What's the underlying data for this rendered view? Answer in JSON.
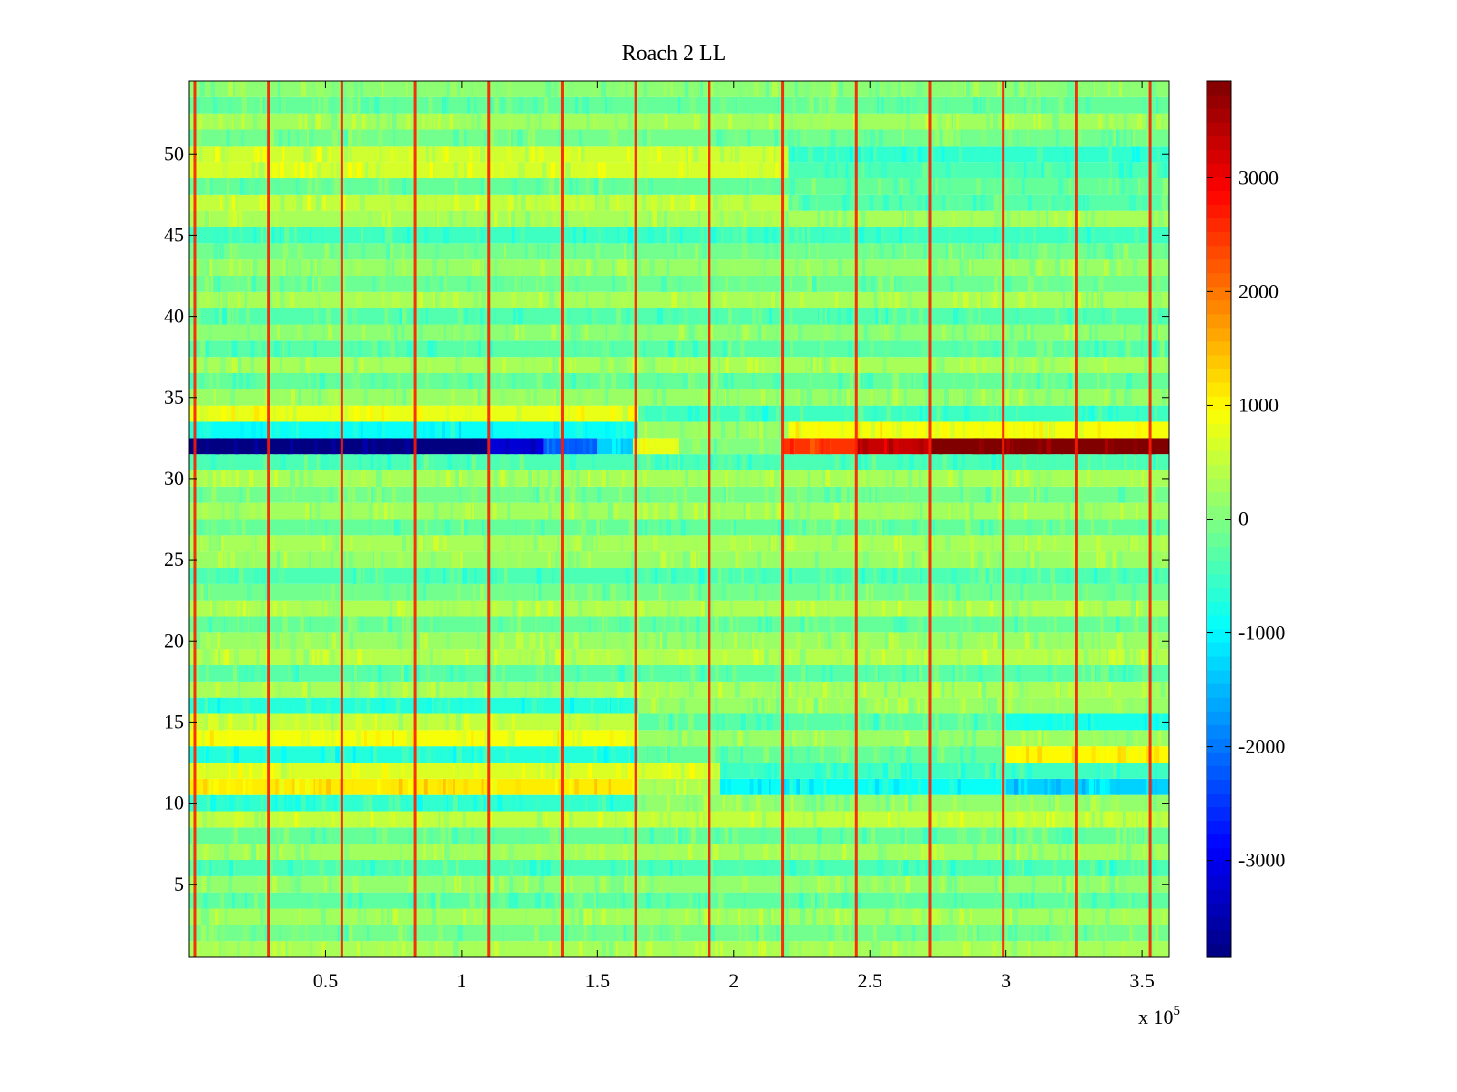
{
  "chart_data": {
    "type": "heatmap",
    "title": "Roach 2 LL",
    "xlabel": "",
    "ylabel": "",
    "x_exponent_label": "x 10",
    "x_exponent_power": "5",
    "xlim": [
      0,
      3.6
    ],
    "ylim": [
      0.5,
      54.5
    ],
    "x_ticks": [
      0.5,
      1,
      1.5,
      2,
      2.5,
      3,
      3.5
    ],
    "x_tick_labels": [
      "0.5",
      "1",
      "1.5",
      "2",
      "2.5",
      "3",
      "3.5"
    ],
    "y_ticks": [
      5,
      10,
      15,
      20,
      25,
      30,
      35,
      40,
      45,
      50
    ],
    "y_tick_labels": [
      "5",
      "10",
      "15",
      "20",
      "25",
      "30",
      "35",
      "40",
      "45",
      "50"
    ],
    "colorbar": {
      "clim": [
        -3850,
        3850
      ],
      "colormap": "jet",
      "ticks": [
        3000,
        2000,
        1000,
        0,
        -1000,
        -2000,
        -3000
      ],
      "tick_labels": [
        "3000",
        "2000",
        "1000",
        "0",
        "-1000",
        "-2000",
        "-3000"
      ]
    },
    "vertical_stripe_positions": [
      0.02,
      0.29,
      0.56,
      0.83,
      1.1,
      1.37,
      1.64,
      1.91,
      2.18,
      2.45,
      2.72,
      2.99,
      3.26,
      3.53
    ],
    "vertical_stripe_value": 2700,
    "row_profiles": [
      {
        "row": 1,
        "segments": [
          {
            "x0": 0,
            "x1": 3.6,
            "value": 300
          }
        ]
      },
      {
        "row": 2,
        "segments": [
          {
            "x0": 0,
            "x1": 3.6,
            "value": -100
          }
        ]
      },
      {
        "row": 3,
        "segments": [
          {
            "x0": 0,
            "x1": 3.6,
            "value": 250
          }
        ]
      },
      {
        "row": 4,
        "segments": [
          {
            "x0": 0,
            "x1": 3.6,
            "value": -250
          }
        ]
      },
      {
        "row": 5,
        "segments": [
          {
            "x0": 0,
            "x1": 3.6,
            "value": 150
          }
        ]
      },
      {
        "row": 6,
        "segments": [
          {
            "x0": 0,
            "x1": 3.6,
            "value": -400
          }
        ]
      },
      {
        "row": 7,
        "segments": [
          {
            "x0": 0,
            "x1": 3.6,
            "value": 250
          }
        ]
      },
      {
        "row": 8,
        "segments": [
          {
            "x0": 0,
            "x1": 3.6,
            "value": -200
          }
        ]
      },
      {
        "row": 9,
        "segments": [
          {
            "x0": 0,
            "x1": 3.6,
            "value": 500
          }
        ]
      },
      {
        "row": 10,
        "segments": [
          {
            "x0": 0,
            "x1": 1.65,
            "value": -600
          },
          {
            "x0": 1.65,
            "x1": 3.6,
            "value": 150
          }
        ]
      },
      {
        "row": 11,
        "segments": [
          {
            "x0": 0,
            "x1": 1.65,
            "value": 1100
          },
          {
            "x0": 1.65,
            "x1": 1.95,
            "value": 300
          },
          {
            "x0": 1.95,
            "x1": 3.0,
            "value": -900
          },
          {
            "x0": 3.0,
            "x1": 3.6,
            "value": -1300
          }
        ]
      },
      {
        "row": 12,
        "segments": [
          {
            "x0": 0,
            "x1": 1.95,
            "value": 700
          },
          {
            "x0": 1.95,
            "x1": 3.6,
            "value": -500
          }
        ]
      },
      {
        "row": 13,
        "segments": [
          {
            "x0": 0,
            "x1": 1.65,
            "value": -700
          },
          {
            "x0": 1.65,
            "x1": 3.0,
            "value": -200
          },
          {
            "x0": 3.0,
            "x1": 3.6,
            "value": 1000
          }
        ]
      },
      {
        "row": 14,
        "segments": [
          {
            "x0": 0,
            "x1": 1.65,
            "value": 900
          },
          {
            "x0": 1.65,
            "x1": 3.6,
            "value": 200
          }
        ]
      },
      {
        "row": 15,
        "segments": [
          {
            "x0": 0,
            "x1": 1.65,
            "value": 500
          },
          {
            "x0": 1.65,
            "x1": 3.0,
            "value": -300
          },
          {
            "x0": 3.0,
            "x1": 3.6,
            "value": -800
          }
        ]
      },
      {
        "row": 16,
        "segments": [
          {
            "x0": 0,
            "x1": 1.65,
            "value": -700
          },
          {
            "x0": 1.65,
            "x1": 3.6,
            "value": 200
          }
        ]
      },
      {
        "row": 17,
        "segments": [
          {
            "x0": 0,
            "x1": 3.6,
            "value": 300
          }
        ]
      },
      {
        "row": 18,
        "segments": [
          {
            "x0": 0,
            "x1": 3.6,
            "value": -300
          }
        ]
      },
      {
        "row": 19,
        "segments": [
          {
            "x0": 0,
            "x1": 3.6,
            "value": 400
          }
        ]
      },
      {
        "row": 20,
        "segments": [
          {
            "x0": 0,
            "x1": 3.6,
            "value": 200
          }
        ]
      },
      {
        "row": 21,
        "segments": [
          {
            "x0": 0,
            "x1": 3.6,
            "value": -200
          }
        ]
      },
      {
        "row": 22,
        "segments": [
          {
            "x0": 0,
            "x1": 3.6,
            "value": 350
          }
        ]
      },
      {
        "row": 23,
        "segments": [
          {
            "x0": 0,
            "x1": 3.6,
            "value": -100
          }
        ]
      },
      {
        "row": 24,
        "segments": [
          {
            "x0": 0,
            "x1": 3.6,
            "value": -400
          }
        ]
      },
      {
        "row": 25,
        "segments": [
          {
            "x0": 0,
            "x1": 3.6,
            "value": 200
          }
        ]
      },
      {
        "row": 26,
        "segments": [
          {
            "x0": 0,
            "x1": 3.6,
            "value": 300
          }
        ]
      },
      {
        "row": 27,
        "segments": [
          {
            "x0": 0,
            "x1": 3.6,
            "value": -200
          }
        ]
      },
      {
        "row": 28,
        "segments": [
          {
            "x0": 0,
            "x1": 3.6,
            "value": 250
          }
        ]
      },
      {
        "row": 29,
        "segments": [
          {
            "x0": 0,
            "x1": 3.6,
            "value": -100
          }
        ]
      },
      {
        "row": 30,
        "segments": [
          {
            "x0": 0,
            "x1": 3.6,
            "value": 300
          }
        ]
      },
      {
        "row": 31,
        "segments": [
          {
            "x0": 0,
            "x1": 3.6,
            "value": -400
          }
        ]
      },
      {
        "row": 32,
        "segments": [
          {
            "x0": 0,
            "x1": 1.1,
            "value": -3850
          },
          {
            "x0": 1.1,
            "x1": 1.3,
            "value": -3200
          },
          {
            "x0": 1.3,
            "x1": 1.5,
            "value": -2200
          },
          {
            "x0": 1.5,
            "x1": 1.63,
            "value": -1300
          },
          {
            "x0": 1.63,
            "x1": 1.8,
            "value": 800
          },
          {
            "x0": 1.8,
            "x1": 2.18,
            "value": 0
          },
          {
            "x0": 2.18,
            "x1": 2.45,
            "value": 2500
          },
          {
            "x0": 2.45,
            "x1": 2.72,
            "value": 3300
          },
          {
            "x0": 2.72,
            "x1": 3.6,
            "value": 3850
          }
        ]
      },
      {
        "row": 33,
        "segments": [
          {
            "x0": 0,
            "x1": 1.65,
            "value": -900
          },
          {
            "x0": 1.65,
            "x1": 2.2,
            "value": 200
          },
          {
            "x0": 2.2,
            "x1": 3.6,
            "value": 900
          }
        ]
      },
      {
        "row": 34,
        "segments": [
          {
            "x0": 0,
            "x1": 1.65,
            "value": 800
          },
          {
            "x0": 1.65,
            "x1": 3.6,
            "value": -500
          }
        ]
      },
      {
        "row": 35,
        "segments": [
          {
            "x0": 0,
            "x1": 3.6,
            "value": 200
          }
        ]
      },
      {
        "row": 36,
        "segments": [
          {
            "x0": 0,
            "x1": 3.6,
            "value": -200
          }
        ]
      },
      {
        "row": 37,
        "segments": [
          {
            "x0": 0,
            "x1": 3.6,
            "value": 300
          }
        ]
      },
      {
        "row": 38,
        "segments": [
          {
            "x0": 0,
            "x1": 3.6,
            "value": -300
          }
        ]
      },
      {
        "row": 39,
        "segments": [
          {
            "x0": 0,
            "x1": 3.6,
            "value": 100
          }
        ]
      },
      {
        "row": 40,
        "segments": [
          {
            "x0": 0,
            "x1": 3.6,
            "value": -350
          }
        ]
      },
      {
        "row": 41,
        "segments": [
          {
            "x0": 0,
            "x1": 3.6,
            "value": 300
          }
        ]
      },
      {
        "row": 42,
        "segments": [
          {
            "x0": 0,
            "x1": 3.6,
            "value": -150
          }
        ]
      },
      {
        "row": 43,
        "segments": [
          {
            "x0": 0,
            "x1": 3.6,
            "value": 200
          }
        ]
      },
      {
        "row": 44,
        "segments": [
          {
            "x0": 0,
            "x1": 3.6,
            "value": -100
          }
        ]
      },
      {
        "row": 45,
        "segments": [
          {
            "x0": 0,
            "x1": 3.6,
            "value": -500
          }
        ]
      },
      {
        "row": 46,
        "segments": [
          {
            "x0": 0,
            "x1": 3.6,
            "value": 300
          }
        ]
      },
      {
        "row": 47,
        "segments": [
          {
            "x0": 0,
            "x1": 2.2,
            "value": 500
          },
          {
            "x0": 2.2,
            "x1": 3.6,
            "value": -300
          }
        ]
      },
      {
        "row": 48,
        "segments": [
          {
            "x0": 0,
            "x1": 3.6,
            "value": -200
          }
        ]
      },
      {
        "row": 49,
        "segments": [
          {
            "x0": 0,
            "x1": 2.2,
            "value": 650
          },
          {
            "x0": 2.2,
            "x1": 3.6,
            "value": -400
          }
        ]
      },
      {
        "row": 50,
        "segments": [
          {
            "x0": 0,
            "x1": 2.2,
            "value": 600
          },
          {
            "x0": 2.2,
            "x1": 3.6,
            "value": -600
          }
        ]
      },
      {
        "row": 51,
        "segments": [
          {
            "x0": 0,
            "x1": 3.6,
            "value": -100
          }
        ]
      },
      {
        "row": 52,
        "segments": [
          {
            "x0": 0,
            "x1": 3.6,
            "value": 250
          }
        ]
      },
      {
        "row": 53,
        "segments": [
          {
            "x0": 0,
            "x1": 3.6,
            "value": -200
          }
        ]
      },
      {
        "row": 54,
        "segments": [
          {
            "x0": 0,
            "x1": 3.6,
            "value": 100
          }
        ]
      }
    ]
  }
}
